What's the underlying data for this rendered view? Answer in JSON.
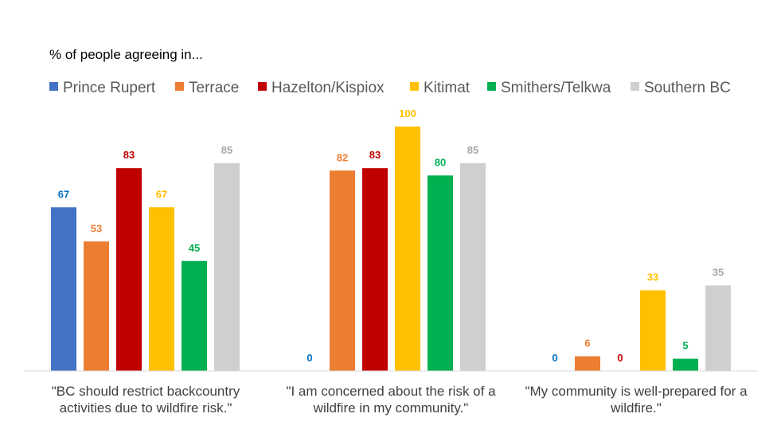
{
  "chart_data": {
    "type": "bar",
    "title": "% of people agreeing in...",
    "xlabel": "",
    "ylabel": "",
    "ylim": [
      0,
      100
    ],
    "grid": false,
    "legend_position": "top",
    "categories": [
      [
        "\"BC should restrict backcountry",
        "activities due to wildfire risk.\""
      ],
      [
        "\"I am concerned about the risk of a",
        "wildfire in my community.\""
      ],
      [
        "\"My community is well-prepared for a",
        "wildfire.\""
      ]
    ],
    "series": [
      {
        "name": "Prince Rupert",
        "color": "#4472C4",
        "values": [
          67,
          0,
          0
        ]
      },
      {
        "name": "Terrace",
        "color": "#ED7D31",
        "values": [
          53,
          82,
          6
        ]
      },
      {
        "name": "Hazelton/Kispiox",
        "color": "#C00000",
        "values": [
          83,
          83,
          0
        ]
      },
      {
        "name": "Kitimat",
        "color": "#FFC000",
        "values": [
          67,
          100,
          33
        ]
      },
      {
        "name": "Smithers/Telkwa",
        "color": "#00B050",
        "values": [
          45,
          80,
          5
        ]
      },
      {
        "name": "Southern BC",
        "color": "#D0CECE",
        "values": [
          85,
          85,
          35
        ]
      }
    ],
    "label_colors": [
      "#0070C0",
      "#ED7D31",
      "#C00000",
      "#FFC000",
      "#00B050",
      "#A6A6A6"
    ]
  }
}
